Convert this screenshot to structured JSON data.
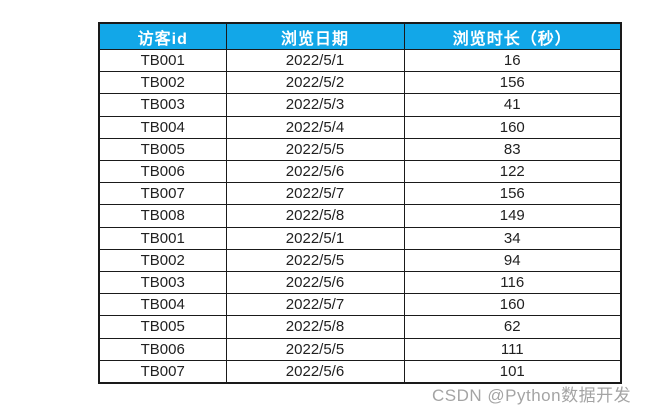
{
  "page": {
    "background": "#ffffff"
  },
  "table_style": {
    "header_bg": "#12a7e8",
    "header_text_color": "#ffffff",
    "border_color": "#1a1a1a",
    "cell_text_color": "#212121"
  },
  "chart_data": {
    "type": "table",
    "columns": [
      "访客id",
      "浏览日期",
      "浏览时长（秒）"
    ],
    "rows": [
      [
        "TB001",
        "2022/5/1",
        "16"
      ],
      [
        "TB002",
        "2022/5/2",
        "156"
      ],
      [
        "TB003",
        "2022/5/3",
        "41"
      ],
      [
        "TB004",
        "2022/5/4",
        "160"
      ],
      [
        "TB005",
        "2022/5/5",
        "83"
      ],
      [
        "TB006",
        "2022/5/6",
        "122"
      ],
      [
        "TB007",
        "2022/5/7",
        "156"
      ],
      [
        "TB008",
        "2022/5/8",
        "149"
      ],
      [
        "TB001",
        "2022/5/1",
        "34"
      ],
      [
        "TB002",
        "2022/5/5",
        "94"
      ],
      [
        "TB003",
        "2022/5/6",
        "116"
      ],
      [
        "TB004",
        "2022/5/7",
        "160"
      ],
      [
        "TB005",
        "2022/5/8",
        "62"
      ],
      [
        "TB006",
        "2022/5/5",
        "111"
      ],
      [
        "TB007",
        "2022/5/6",
        "101"
      ]
    ]
  },
  "watermark": {
    "text": "CSDN @Python数据开发",
    "color": "#9b9b9b"
  }
}
